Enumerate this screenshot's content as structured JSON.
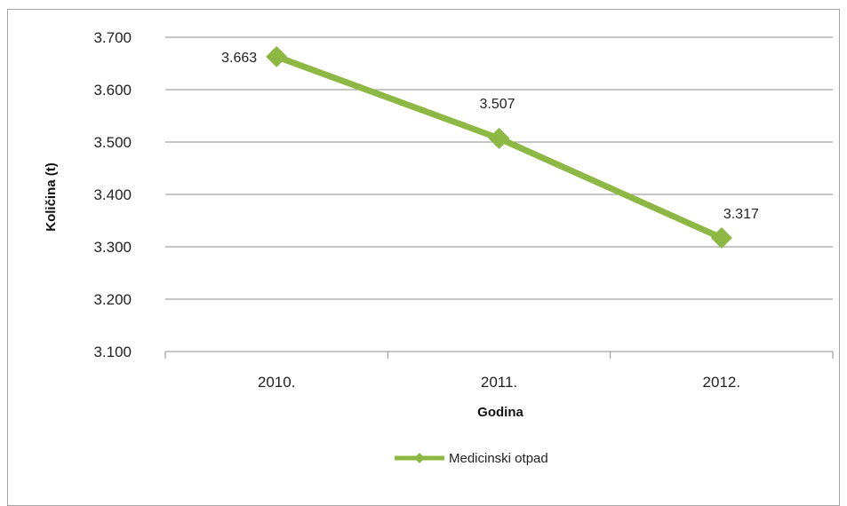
{
  "chart_data": {
    "type": "line",
    "categories": [
      "2010.",
      "2011.",
      "2012."
    ],
    "series": [
      {
        "name": "Medicinski otpad",
        "values": [
          3663,
          3507,
          3317
        ],
        "labels": [
          "3.663",
          "3.507",
          "3.317"
        ],
        "color": "#8db843"
      }
    ],
    "ylim": [
      3100,
      3700
    ],
    "yticks": [
      3100,
      3200,
      3300,
      3400,
      3500,
      3600,
      3700
    ],
    "ytick_labels": [
      "3.100",
      "3.200",
      "3.300",
      "3.400",
      "3.500",
      "3.600",
      "3.700"
    ],
    "xlabel": "Godina",
    "ylabel": "Količina (t)",
    "grid": true,
    "legend_position": "bottom"
  }
}
